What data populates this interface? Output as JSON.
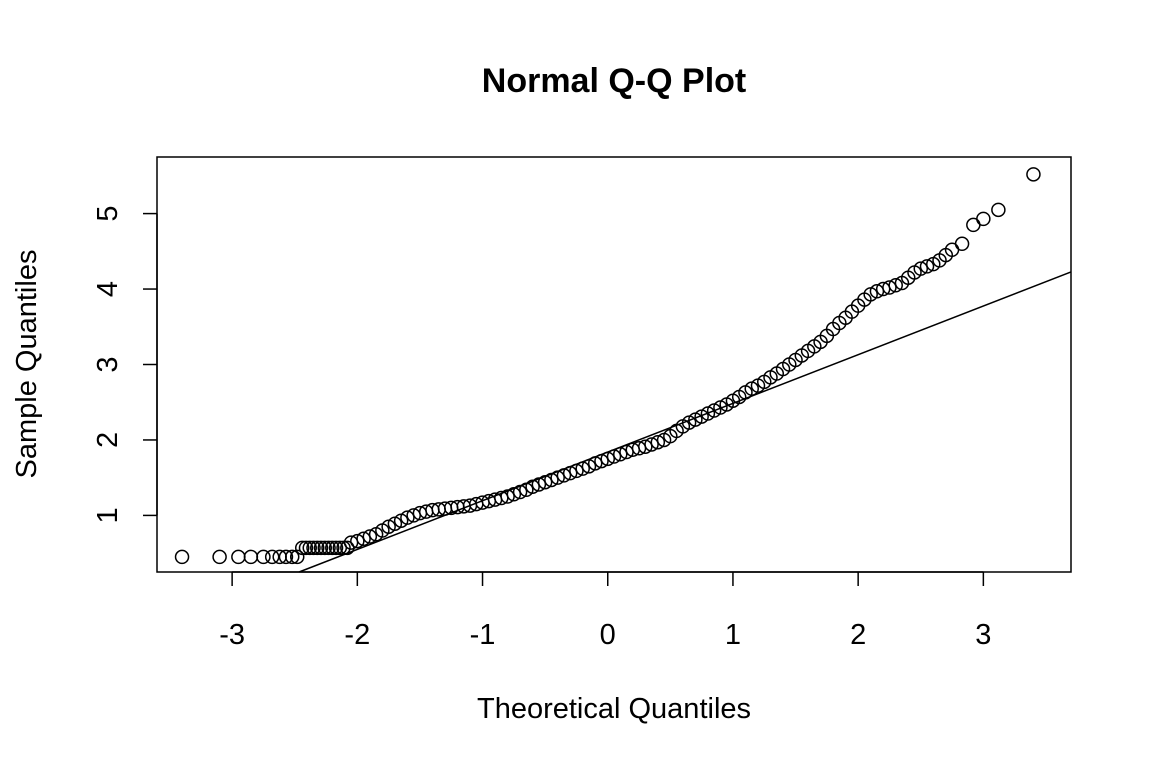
{
  "chart_data": {
    "type": "scatter",
    "title": "Normal Q-Q Plot",
    "xlabel": "Theoretical Quantiles",
    "ylabel": "Sample Quantiles",
    "xlim": [
      -3.6,
      3.7
    ],
    "ylim": [
      0.25,
      5.75
    ],
    "x_ticks": [
      -3,
      -2,
      -1,
      0,
      1,
      2,
      3
    ],
    "x_tick_labels": [
      "-3",
      "-2",
      "-1",
      "0",
      "1",
      "2",
      "3"
    ],
    "y_ticks": [
      1,
      2,
      3,
      4,
      5
    ],
    "y_tick_labels": [
      "1",
      "2",
      "3",
      "4",
      "5"
    ],
    "grid": false,
    "reference_line": {
      "slope": 0.645,
      "intercept": 1.84
    },
    "points": [
      [
        -3.4,
        0.45
      ],
      [
        -3.1,
        0.45
      ],
      [
        -2.95,
        0.45
      ],
      [
        -2.85,
        0.45
      ],
      [
        -2.75,
        0.45
      ],
      [
        -2.68,
        0.45
      ],
      [
        -2.62,
        0.45
      ],
      [
        -2.57,
        0.45
      ],
      [
        -2.52,
        0.45
      ],
      [
        -2.48,
        0.45
      ],
      [
        -2.44,
        0.57
      ],
      [
        -2.41,
        0.57
      ],
      [
        -2.38,
        0.57
      ],
      [
        -2.35,
        0.57
      ],
      [
        -2.32,
        0.57
      ],
      [
        -2.29,
        0.57
      ],
      [
        -2.26,
        0.57
      ],
      [
        -2.23,
        0.57
      ],
      [
        -2.2,
        0.57
      ],
      [
        -2.17,
        0.57
      ],
      [
        -2.14,
        0.57
      ],
      [
        -2.11,
        0.57
      ],
      [
        -2.08,
        0.57
      ],
      [
        -2.05,
        0.64
      ],
      [
        -2.0,
        0.66
      ],
      [
        -1.95,
        0.69
      ],
      [
        -1.9,
        0.72
      ],
      [
        -1.85,
        0.75
      ],
      [
        -1.8,
        0.8
      ],
      [
        -1.75,
        0.85
      ],
      [
        -1.7,
        0.89
      ],
      [
        -1.65,
        0.93
      ],
      [
        -1.6,
        0.97
      ],
      [
        -1.55,
        1.0
      ],
      [
        -1.5,
        1.03
      ],
      [
        -1.45,
        1.05
      ],
      [
        -1.4,
        1.07
      ],
      [
        -1.35,
        1.08
      ],
      [
        -1.3,
        1.09
      ],
      [
        -1.25,
        1.1
      ],
      [
        -1.2,
        1.11
      ],
      [
        -1.15,
        1.12
      ],
      [
        -1.1,
        1.13
      ],
      [
        -1.05,
        1.15
      ],
      [
        -1.0,
        1.17
      ],
      [
        -0.95,
        1.19
      ],
      [
        -0.9,
        1.21
      ],
      [
        -0.85,
        1.23
      ],
      [
        -0.8,
        1.25
      ],
      [
        -0.75,
        1.28
      ],
      [
        -0.7,
        1.31
      ],
      [
        -0.65,
        1.34
      ],
      [
        -0.6,
        1.38
      ],
      [
        -0.55,
        1.41
      ],
      [
        -0.5,
        1.44
      ],
      [
        -0.45,
        1.47
      ],
      [
        -0.4,
        1.5
      ],
      [
        -0.35,
        1.53
      ],
      [
        -0.3,
        1.56
      ],
      [
        -0.25,
        1.59
      ],
      [
        -0.2,
        1.62
      ],
      [
        -0.15,
        1.65
      ],
      [
        -0.1,
        1.69
      ],
      [
        -0.05,
        1.72
      ],
      [
        0.0,
        1.75
      ],
      [
        0.05,
        1.78
      ],
      [
        0.1,
        1.81
      ],
      [
        0.15,
        1.84
      ],
      [
        0.2,
        1.87
      ],
      [
        0.25,
        1.89
      ],
      [
        0.3,
        1.91
      ],
      [
        0.35,
        1.94
      ],
      [
        0.4,
        1.97
      ],
      [
        0.45,
        2.0
      ],
      [
        0.5,
        2.05
      ],
      [
        0.55,
        2.12
      ],
      [
        0.6,
        2.18
      ],
      [
        0.65,
        2.23
      ],
      [
        0.7,
        2.27
      ],
      [
        0.75,
        2.31
      ],
      [
        0.8,
        2.35
      ],
      [
        0.85,
        2.39
      ],
      [
        0.9,
        2.43
      ],
      [
        0.95,
        2.47
      ],
      [
        1.0,
        2.52
      ],
      [
        1.05,
        2.57
      ],
      [
        1.1,
        2.63
      ],
      [
        1.15,
        2.68
      ],
      [
        1.2,
        2.72
      ],
      [
        1.25,
        2.77
      ],
      [
        1.3,
        2.83
      ],
      [
        1.35,
        2.88
      ],
      [
        1.4,
        2.94
      ],
      [
        1.45,
        3.0
      ],
      [
        1.5,
        3.06
      ],
      [
        1.55,
        3.12
      ],
      [
        1.6,
        3.18
      ],
      [
        1.65,
        3.24
      ],
      [
        1.7,
        3.3
      ],
      [
        1.75,
        3.38
      ],
      [
        1.8,
        3.47
      ],
      [
        1.85,
        3.55
      ],
      [
        1.9,
        3.62
      ],
      [
        1.95,
        3.7
      ],
      [
        2.0,
        3.78
      ],
      [
        2.05,
        3.86
      ],
      [
        2.1,
        3.93
      ],
      [
        2.15,
        3.97
      ],
      [
        2.2,
        4.0
      ],
      [
        2.25,
        4.02
      ],
      [
        2.3,
        4.05
      ],
      [
        2.35,
        4.08
      ],
      [
        2.4,
        4.15
      ],
      [
        2.45,
        4.22
      ],
      [
        2.5,
        4.27
      ],
      [
        2.55,
        4.3
      ],
      [
        2.6,
        4.33
      ],
      [
        2.65,
        4.38
      ],
      [
        2.7,
        4.45
      ],
      [
        2.75,
        4.52
      ],
      [
        2.83,
        4.6
      ],
      [
        2.92,
        4.85
      ],
      [
        3.0,
        4.93
      ],
      [
        3.12,
        5.05
      ],
      [
        3.4,
        5.52
      ]
    ]
  }
}
